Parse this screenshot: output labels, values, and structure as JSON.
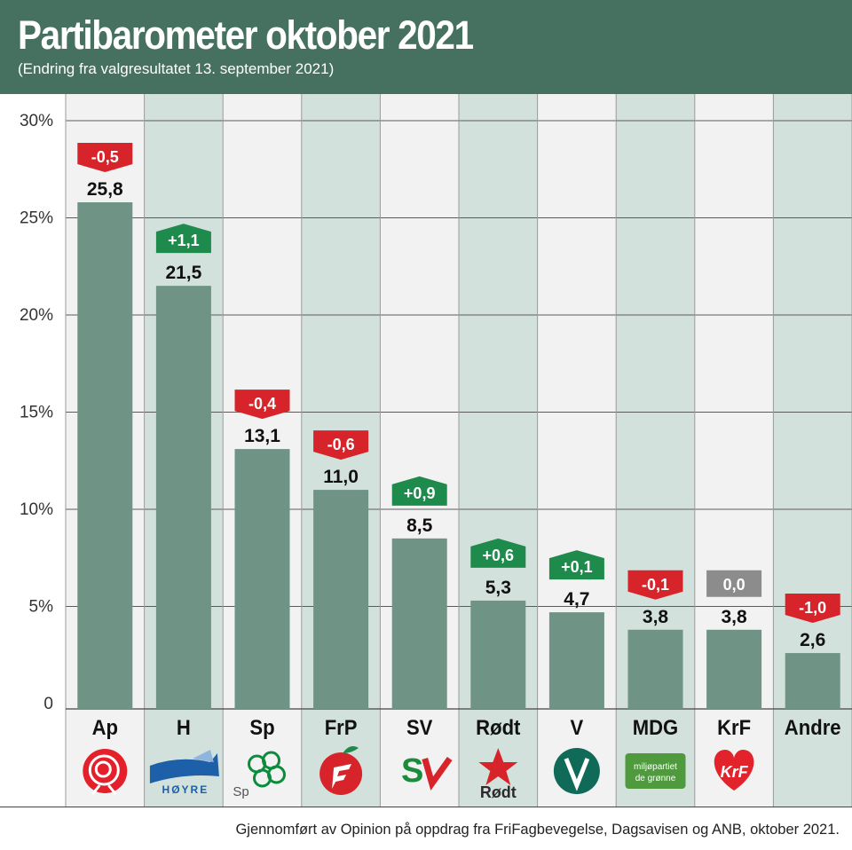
{
  "header": {
    "title": "Partibarometer oktober 2021",
    "subtitle": "(Endring fra valgresultatet 13. september 2021)"
  },
  "footer": {
    "source": "Gjennomført av Opinion på oppdrag fra FriFagbevegelse, Dagsavisen og ANB, oktober 2021."
  },
  "colors": {
    "header": "#467160",
    "bar": "#6f9385",
    "column_light": "#f2f2f2",
    "column_tinted": "#d3e1dc",
    "change_up": "#1e8a4c",
    "change_down": "#d7242a",
    "change_zero": "#8c8c8c"
  },
  "chart_data": {
    "type": "bar",
    "title": "Partibarometer oktober 2021",
    "subtitle": "(Endring fra valgresultatet 13. september 2021)",
    "categories": [
      "Ap",
      "H",
      "Sp",
      "FrP",
      "SV",
      "Rødt",
      "V",
      "MDG",
      "KrF",
      "Andre"
    ],
    "values": [
      25.8,
      21.5,
      13.1,
      11.0,
      8.5,
      5.3,
      4.7,
      3.8,
      3.8,
      2.6
    ],
    "value_labels": [
      "25,8",
      "21,5",
      "13,1",
      "11,0",
      "8,5",
      "5,3",
      "4,7",
      "3,8",
      "3,8",
      "2,6"
    ],
    "changes": [
      -0.5,
      1.1,
      -0.4,
      -0.6,
      0.9,
      0.6,
      0.1,
      -0.1,
      0.0,
      -1.0
    ],
    "change_labels": [
      "-0,5",
      "+1,1",
      "-0,4",
      "-0,6",
      "+0,9",
      "+0,6",
      "+0,1",
      "-0,1",
      "0,0",
      "-1,0"
    ],
    "ylim": [
      0,
      30
    ],
    "yticks": [
      0,
      5,
      10,
      15,
      20,
      25,
      30
    ],
    "ytick_labels": [
      "0",
      "5%",
      "10%",
      "15%",
      "20%",
      "25%",
      "30%"
    ],
    "grid": true,
    "party_logos": [
      {
        "icon": "ap-rose-icon",
        "text": ""
      },
      {
        "icon": "hoyre-logo-icon",
        "text": "HØYRE"
      },
      {
        "icon": "sp-clover-icon",
        "text": "Sp"
      },
      {
        "icon": "frp-apple-icon",
        "text": ""
      },
      {
        "icon": "sv-logo-icon",
        "text": "SV"
      },
      {
        "icon": "rodt-star-icon",
        "text": "Rødt"
      },
      {
        "icon": "venstre-logo-icon",
        "text": ""
      },
      {
        "icon": "mdg-logo-icon",
        "text": "miljøpartiet de grønne"
      },
      {
        "icon": "krf-heart-icon",
        "text": "KrF"
      },
      {
        "icon": "",
        "text": ""
      }
    ]
  }
}
